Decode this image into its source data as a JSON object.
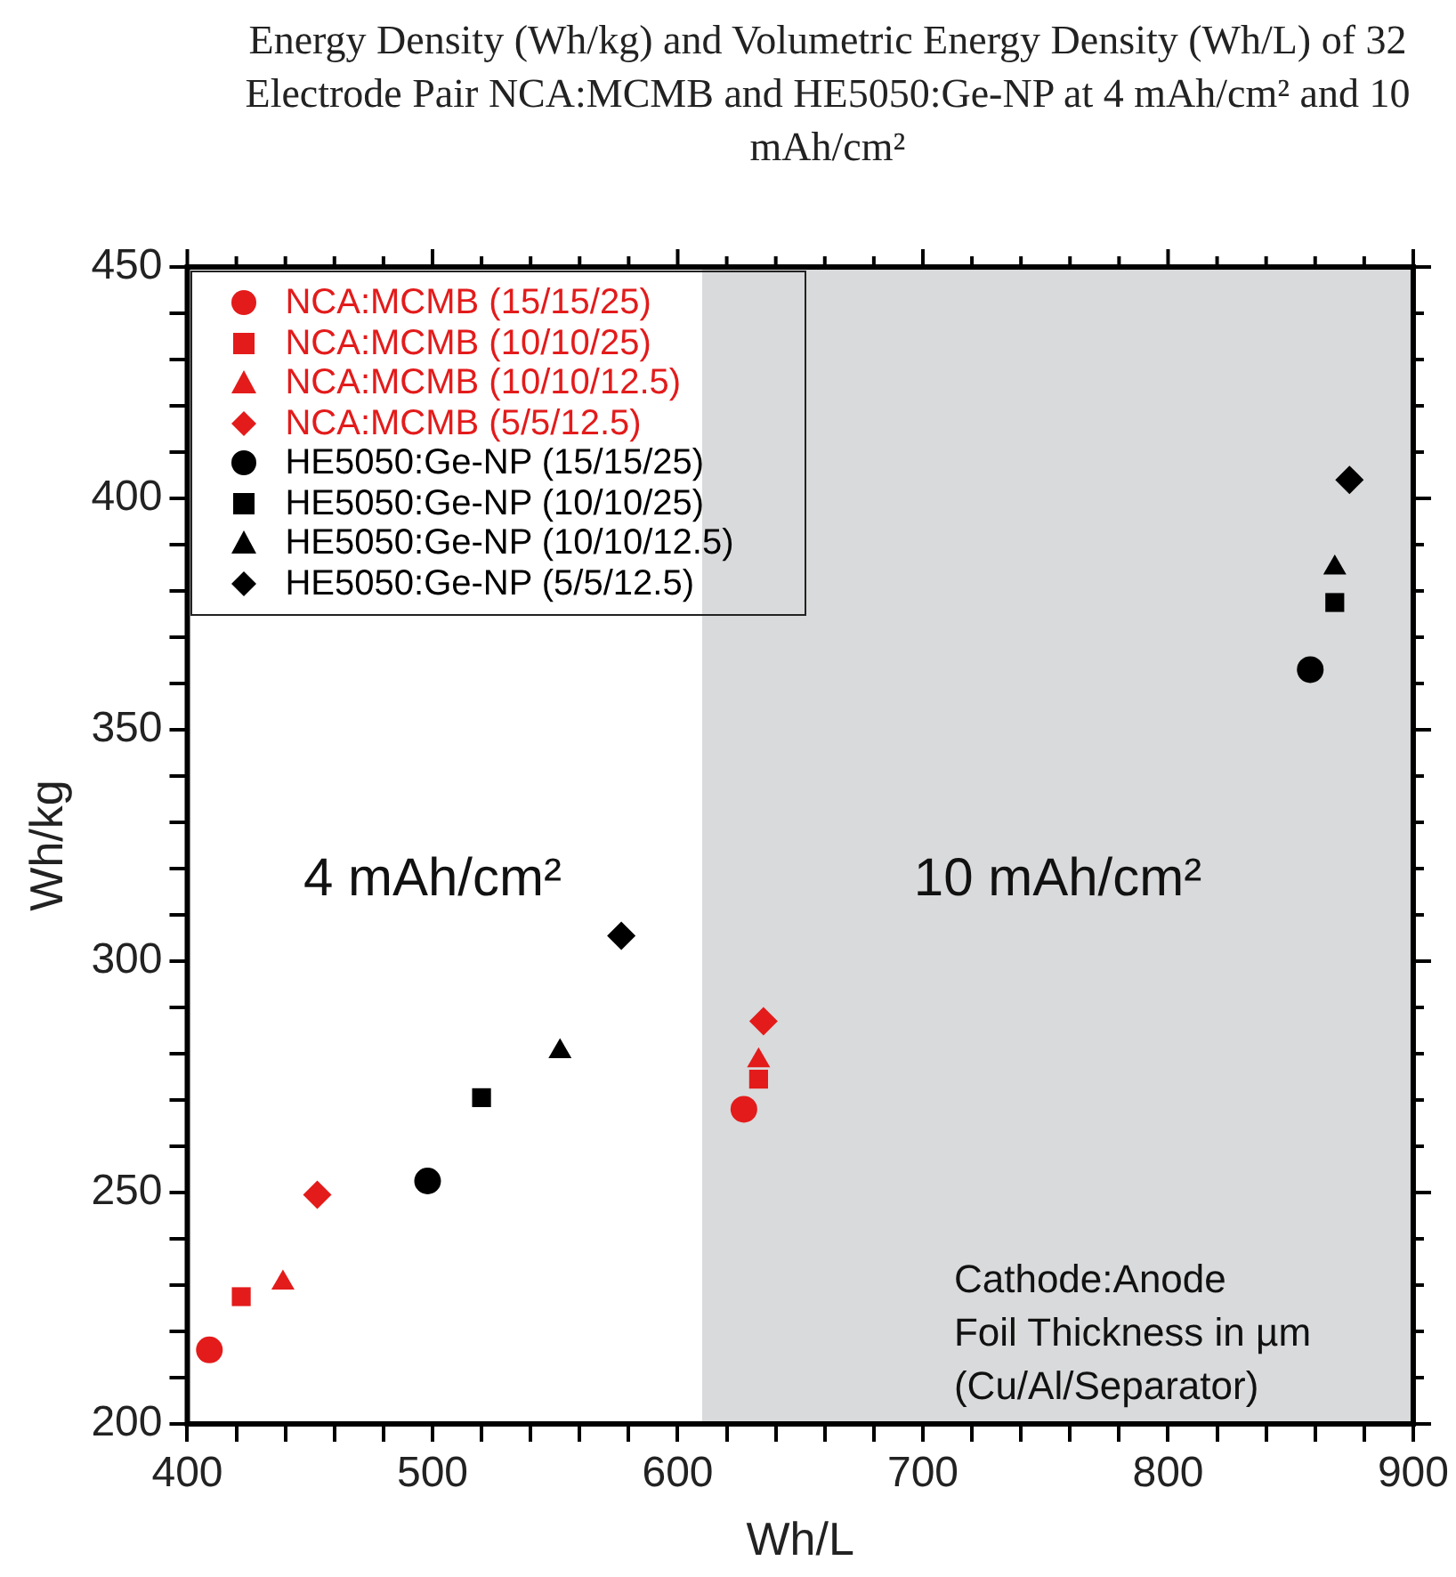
{
  "chart_data": {
    "type": "scatter",
    "title": "Energy Density (Wh/kg) and Volumetric Energy Density (Wh/L) of 32 Electrode Pair NCA:MCMB and HE5050:Ge-NP at 4 mAh/cm² and 10 mAh/cm²",
    "xlabel": "Wh/L",
    "ylabel": "Wh/kg",
    "xlim": [
      400,
      900
    ],
    "ylim": [
      200,
      450
    ],
    "xticks": [
      400,
      {
        "value": 420,
        "label": null
      },
      {
        "value": 440,
        "label": null
      },
      {
        "value": 460,
        "label": null
      },
      {
        "value": 480,
        "label": null
      },
      500,
      {
        "value": 520,
        "label": null
      },
      {
        "value": 540,
        "label": null
      },
      {
        "value": 560,
        "label": null
      },
      {
        "value": 580,
        "label": null
      },
      600,
      {
        "value": 620,
        "label": null
      },
      {
        "value": 640,
        "label": null
      },
      {
        "value": 660,
        "label": null
      },
      {
        "value": 680,
        "label": null
      },
      700,
      {
        "value": 720,
        "label": null
      },
      {
        "value": 740,
        "label": null
      },
      {
        "value": 760,
        "label": null
      },
      {
        "value": 780,
        "label": null
      },
      800,
      {
        "value": 820,
        "label": null
      },
      {
        "value": 840,
        "label": null
      },
      {
        "value": 860,
        "label": null
      },
      {
        "value": 880,
        "label": null
      },
      900
    ],
    "yticks": [
      200,
      {
        "value": 210,
        "label": null
      },
      {
        "value": 220,
        "label": null
      },
      {
        "value": 230,
        "label": null
      },
      {
        "value": 240,
        "label": null
      },
      250,
      {
        "value": 260,
        "label": null
      },
      {
        "value": 270,
        "label": null
      },
      {
        "value": 280,
        "label": null
      },
      {
        "value": 290,
        "label": null
      },
      300,
      {
        "value": 310,
        "label": null
      },
      {
        "value": 320,
        "label": null
      },
      {
        "value": 330,
        "label": null
      },
      {
        "value": 340,
        "label": null
      },
      350,
      {
        "value": 360,
        "label": null
      },
      {
        "value": 370,
        "label": null
      },
      {
        "value": 380,
        "label": null
      },
      {
        "value": 390,
        "label": null
      },
      400,
      {
        "value": 410,
        "label": null
      },
      {
        "value": 420,
        "label": null
      },
      {
        "value": 430,
        "label": null
      },
      {
        "value": 440,
        "label": null
      },
      450
    ],
    "grid": false,
    "legend": "top left",
    "series": [
      {
        "name": "NCA:MCMB (15/15/25)",
        "color": "#e31b1b",
        "marker": "circle",
        "x": [
          409,
          627
        ],
        "values": [
          216,
          268
        ]
      },
      {
        "name": "NCA:MCMB (10/10/25)",
        "color": "#e31b1b",
        "marker": "square",
        "x": [
          422,
          633
        ],
        "values": [
          227.5,
          274.5
        ]
      },
      {
        "name": "NCA:MCMB (10/10/12.5)",
        "color": "#e31b1b",
        "marker": "triangle",
        "x": [
          439,
          633
        ],
        "values": [
          230.5,
          278.5
        ]
      },
      {
        "name": "NCA:MCMB (5/5/12.5)",
        "color": "#e31b1b",
        "marker": "diamond",
        "x": [
          453,
          635
        ],
        "values": [
          249.5,
          287
        ]
      },
      {
        "name": "HE5050:Ge-NP (15/15/25)",
        "color": "#000000",
        "marker": "circle",
        "x": [
          498,
          858
        ],
        "values": [
          252.5,
          363
        ]
      },
      {
        "name": "HE5050:Ge-NP (10/10/25)",
        "color": "#000000",
        "marker": "square",
        "x": [
          520,
          868
        ],
        "values": [
          270.5,
          377.5
        ]
      },
      {
        "name": "HE5050:Ge-NP (10/10/12.5)",
        "color": "#000000",
        "marker": "triangle",
        "x": [
          552,
          868
        ],
        "values": [
          280.5,
          385
        ]
      },
      {
        "name": "HE5050:Ge-NP (5/5/12.5)",
        "color": "#000000",
        "marker": "diamond",
        "x": [
          577,
          874
        ],
        "values": [
          305.5,
          404
        ]
      }
    ],
    "bands": [
      {
        "axis": "x",
        "from": 610,
        "to": 900,
        "label": "10 mAh/cm²",
        "color": "#d9dadb"
      }
    ],
    "annotations": [
      "4 mAh/cm²",
      "Cathode:Anode\nFoil Thickness in µm\n(Cu/Al/Separator)"
    ]
  }
}
